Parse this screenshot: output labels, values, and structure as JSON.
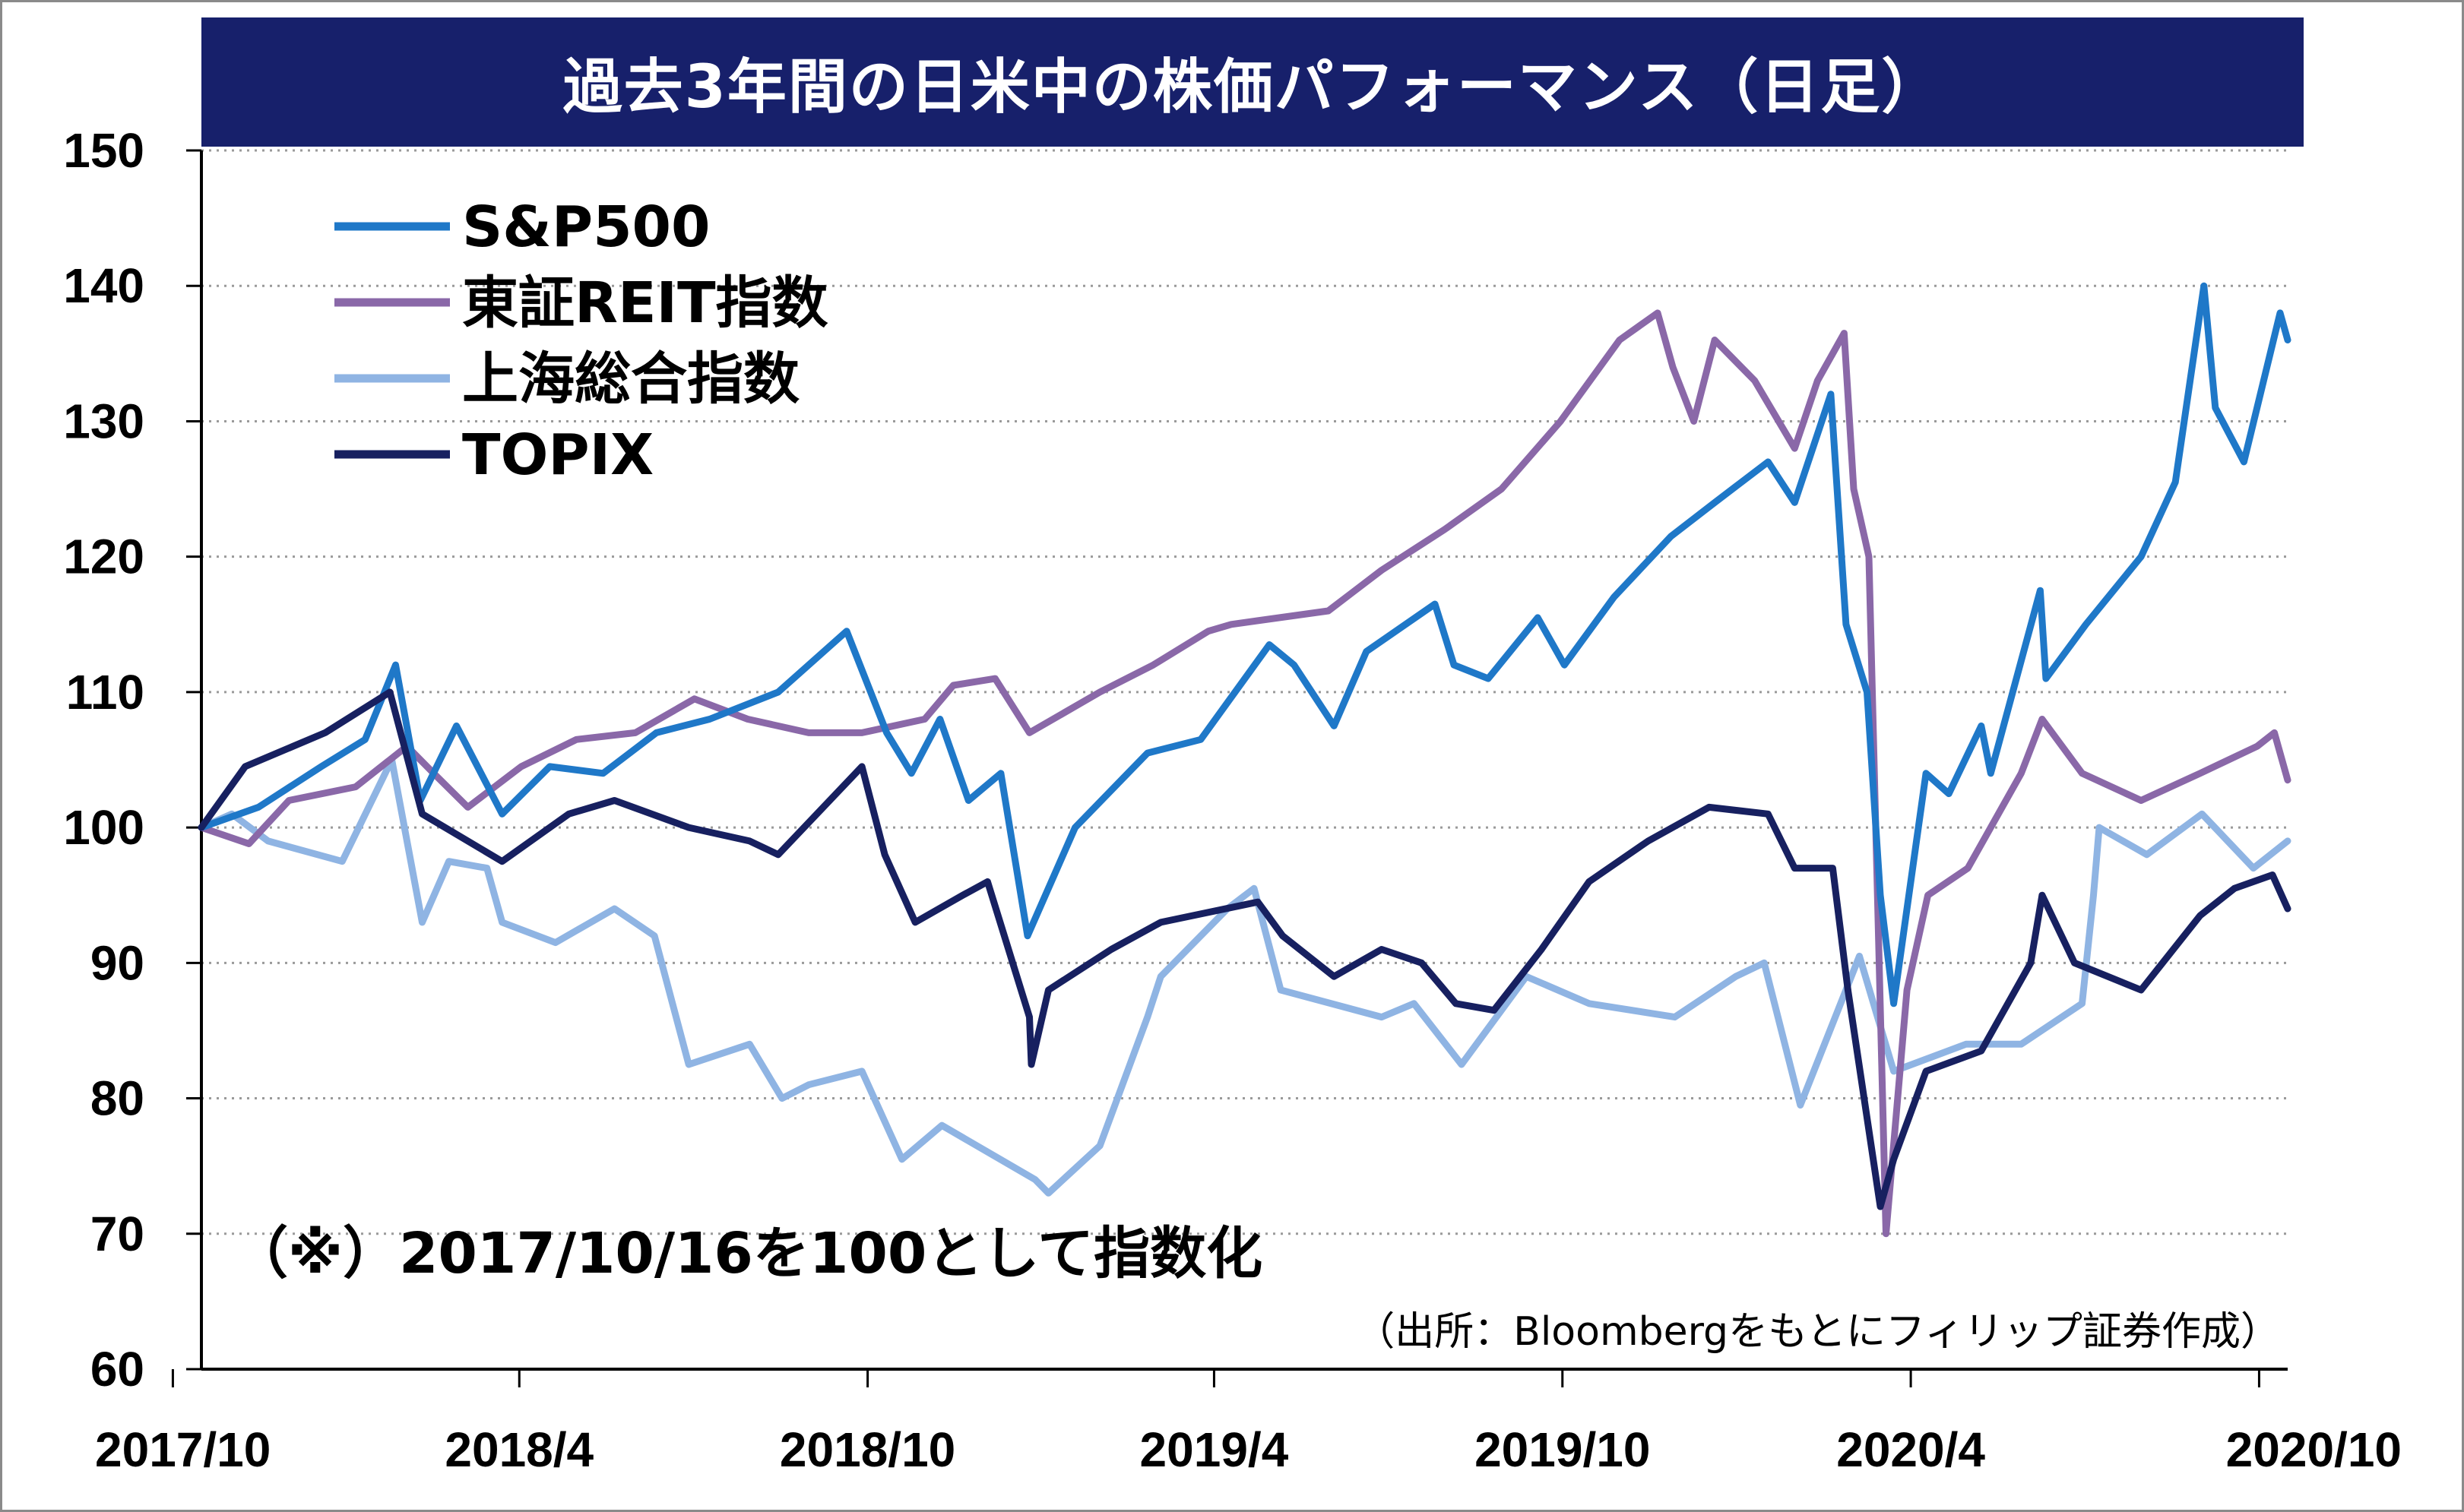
{
  "chart_data": {
    "type": "line",
    "title": "過去3年間の日米中の株価パフォーマンス（日足）",
    "note": "（※）2017/10/16を100として指数化",
    "source": "（出所：Bloombergをもとにフィリップ証券作成）",
    "xlabel": "",
    "ylabel": "",
    "ylim": [
      60,
      150
    ],
    "yticks": [
      "150",
      "140",
      "130",
      "120",
      "110",
      "100",
      "90",
      "80",
      "70",
      "60"
    ],
    "xticks": [
      "2017/10",
      "2018/4",
      "2018/10",
      "2019/4",
      "2019/10",
      "2020/4",
      "2020/10"
    ],
    "xrange": [
      "2017/10/16",
      "2020/10/16"
    ],
    "grid": "horizontal dotted",
    "legend_position": "top-left",
    "series": [
      {
        "name": "S&P500",
        "color": "#1f78c8",
        "points": [
          [
            "2017/10/16",
            100
          ],
          [
            "2017/11/15",
            101.5
          ],
          [
            "2017/12/18",
            104.5
          ],
          [
            "2018/1/10",
            106.5
          ],
          [
            "2018/1/26",
            112
          ],
          [
            "2018/2/8",
            102
          ],
          [
            "2018/2/27",
            107.5
          ],
          [
            "2018/3/23",
            101
          ],
          [
            "2018/4/17",
            104.5
          ],
          [
            "2018/5/15",
            104
          ],
          [
            "2018/6/12",
            107
          ],
          [
            "2018/7/10",
            108
          ],
          [
            "2018/8/15",
            110
          ],
          [
            "2018/9/20",
            114.5
          ],
          [
            "2018/10/11",
            107
          ],
          [
            "2018/10/24",
            104
          ],
          [
            "2018/11/8",
            108
          ],
          [
            "2018/11/23",
            102
          ],
          [
            "2018/12/10",
            104
          ],
          [
            "2018/12/24",
            92
          ],
          [
            "2019/1/18",
            100
          ],
          [
            "2019/2/25",
            105.5
          ],
          [
            "2019/3/25",
            106.5
          ],
          [
            "2019/4/30",
            113.5
          ],
          [
            "2019/5/13",
            112
          ],
          [
            "2019/6/3",
            107.5
          ],
          [
            "2019/6/20",
            113
          ],
          [
            "2019/7/26",
            116.5
          ],
          [
            "2019/8/5",
            112
          ],
          [
            "2019/8/23",
            111
          ],
          [
            "2019/9/18",
            115.5
          ],
          [
            "2019/10/2",
            112
          ],
          [
            "2019/10/28",
            117
          ],
          [
            "2019/11/27",
            121.5
          ],
          [
            "2019/12/20",
            124
          ],
          [
            "2020/1/17",
            127
          ],
          [
            "2020/1/31",
            124
          ],
          [
            "2020/2/19",
            132
          ],
          [
            "2020/2/27",
            115
          ],
          [
            "2020/3/9",
            110
          ],
          [
            "2020/3/16",
            95
          ],
          [
            "2020/3/23",
            87
          ],
          [
            "2020/4/9",
            104
          ],
          [
            "2020/4/21",
            102.5
          ],
          [
            "2020/5/8",
            107.5
          ],
          [
            "2020/5/13",
            104
          ],
          [
            "2020/6/8",
            117.5
          ],
          [
            "2020/6/11",
            111
          ],
          [
            "2020/7/2",
            115
          ],
          [
            "2020/7/31",
            120
          ],
          [
            "2020/8/18",
            125.5
          ],
          [
            "2020/9/2",
            140
          ],
          [
            "2020/9/8",
            131
          ],
          [
            "2020/9/23",
            127
          ],
          [
            "2020/10/12",
            138
          ],
          [
            "2020/10/16",
            136
          ]
        ]
      },
      {
        "name": "東証REIT指数",
        "color": "#8a68a8",
        "points": [
          [
            "2017/10/16",
            100
          ],
          [
            "2017/11/10",
            98.8
          ],
          [
            "2017/12/1",
            102
          ],
          [
            "2018/1/5",
            103
          ],
          [
            "2018/2/1",
            106
          ],
          [
            "2018/2/15",
            104
          ],
          [
            "2018/3/5",
            101.5
          ],
          [
            "2018/4/2",
            104.5
          ],
          [
            "2018/5/1",
            106.5
          ],
          [
            "2018/6/1",
            107
          ],
          [
            "2018/7/2",
            109.5
          ],
          [
            "2018/7/30",
            108
          ],
          [
            "2018/8/31",
            107
          ],
          [
            "2018/9/28",
            107
          ],
          [
            "2018/10/31",
            108
          ],
          [
            "2018/11/15",
            110.5
          ],
          [
            "2018/12/7",
            111
          ],
          [
            "2018/12/25",
            107
          ],
          [
            "2019/1/31",
            110
          ],
          [
            "2019/2/28",
            112
          ],
          [
            "2019/3/29",
            114.5
          ],
          [
            "2019/4/10",
            115
          ],
          [
            "2019/5/31",
            116
          ],
          [
            "2019/6/28",
            119
          ],
          [
            "2019/7/31",
            122
          ],
          [
            "2019/8/30",
            125
          ],
          [
            "2019/9/30",
            130
          ],
          [
            "2019/10/31",
            136
          ],
          [
            "2019/11/20",
            138
          ],
          [
            "2019/11/28",
            134
          ],
          [
            "2019/12/9",
            130
          ],
          [
            "2019/12/20",
            136
          ],
          [
            "2020/1/10",
            133
          ],
          [
            "2020/1/31",
            128
          ],
          [
            "2020/2/12",
            133
          ],
          [
            "2020/2/26",
            136.5
          ],
          [
            "2020/3/2",
            125
          ],
          [
            "2020/3/10",
            120
          ],
          [
            "2020/3/19",
            70
          ],
          [
            "2020/3/30",
            88
          ],
          [
            "2020/4/10",
            95
          ],
          [
            "2020/5/1",
            97
          ],
          [
            "2020/5/29",
            104
          ],
          [
            "2020/6/9",
            108
          ],
          [
            "2020/6/30",
            104
          ],
          [
            "2020/7/31",
            102
          ],
          [
            "2020/8/31",
            104
          ],
          [
            "2020/9/30",
            106
          ],
          [
            "2020/10/9",
            107
          ],
          [
            "2020/10/16",
            103.5
          ]
        ]
      },
      {
        "name": "上海総合指数",
        "color": "#8fb4e3",
        "points": [
          [
            "2017/10/16",
            100
          ],
          [
            "2017/11/1",
            101
          ],
          [
            "2017/11/20",
            99
          ],
          [
            "2017/12/29",
            97.5
          ],
          [
            "2018/1/24",
            105
          ],
          [
            "2018/2/9",
            93
          ],
          [
            "2018/2/23",
            97.5
          ],
          [
            "2018/3/15",
            97
          ],
          [
            "2018/3/23",
            93
          ],
          [
            "2018/4/20",
            91.5
          ],
          [
            "2018/5/21",
            94
          ],
          [
            "2018/6/11",
            92
          ],
          [
            "2018/6/29",
            82.5
          ],
          [
            "2018/7/31",
            84
          ],
          [
            "2018/8/17",
            80
          ],
          [
            "2018/8/31",
            81
          ],
          [
            "2018/9/28",
            82
          ],
          [
            "2018/10/19",
            75.5
          ],
          [
            "2018/11/9",
            78
          ],
          [
            "2018/12/28",
            74
          ],
          [
            "2019/1/4",
            73
          ],
          [
            "2019/1/31",
            76.5
          ],
          [
            "2019/2/25",
            86
          ],
          [
            "2019/3/4",
            89
          ],
          [
            "2019/4/8",
            94
          ],
          [
            "2019/4/22",
            95.5
          ],
          [
            "2019/5/6",
            88
          ],
          [
            "2019/6/28",
            86
          ],
          [
            "2019/7/15",
            87
          ],
          [
            "2019/8/9",
            82.5
          ],
          [
            "2019/9/12",
            89
          ],
          [
            "2019/10/15",
            87
          ],
          [
            "2019/11/29",
            86
          ],
          [
            "2019/12/31",
            89
          ],
          [
            "2020/1/15",
            90
          ],
          [
            "2020/2/3",
            79.5
          ],
          [
            "2020/3/5",
            90.5
          ],
          [
            "2020/3/23",
            82
          ],
          [
            "2020/4/30",
            84
          ],
          [
            "2020/5/29",
            84
          ],
          [
            "2020/6/30",
            87
          ],
          [
            "2020/7/6",
            95
          ],
          [
            "2020/7/9",
            100
          ],
          [
            "2020/8/3",
            98
          ],
          [
            "2020/9/1",
            101
          ],
          [
            "2020/9/28",
            97
          ],
          [
            "2020/10/16",
            99
          ]
        ]
      },
      {
        "name": "TOPIX",
        "color": "#172060",
        "points": [
          [
            "2017/10/16",
            100
          ],
          [
            "2017/11/8",
            104.5
          ],
          [
            "2017/12/20",
            107
          ],
          [
            "2018/1/23",
            110
          ],
          [
            "2018/2/9",
            101
          ],
          [
            "2018/3/23",
            97.5
          ],
          [
            "2018/4/27",
            101
          ],
          [
            "2018/5/21",
            102
          ],
          [
            "2018/6/29",
            100
          ],
          [
            "2018/7/31",
            99
          ],
          [
            "2018/8/15",
            98
          ],
          [
            "2018/9/28",
            104.5
          ],
          [
            "2018/10/10",
            98
          ],
          [
            "2018/10/26",
            93
          ],
          [
            "2018/11/20",
            95
          ],
          [
            "2018/12/3",
            96
          ],
          [
            "2018/12/25",
            86
          ],
          [
            "2018/12/26",
            82.5
          ],
          [
            "2019/1/4",
            88
          ],
          [
            "2019/2/6",
            91
          ],
          [
            "2019/3/4",
            93
          ],
          [
            "2019/4/24",
            94.5
          ],
          [
            "2019/5/7",
            92
          ],
          [
            "2019/6/3",
            89
          ],
          [
            "2019/6/28",
            91
          ],
          [
            "2019/7/19",
            90
          ],
          [
            "2019/8/6",
            87
          ],
          [
            "2019/8/26",
            86.5
          ],
          [
            "2019/9/20",
            91
          ],
          [
            "2019/10/15",
            96
          ],
          [
            "2019/11/15",
            99
          ],
          [
            "2019/12/17",
            101.5
          ],
          [
            "2020/1/17",
            101
          ],
          [
            "2020/1/31",
            97
          ],
          [
            "2020/2/20",
            97
          ],
          [
            "2020/2/28",
            88
          ],
          [
            "2020/3/16",
            72
          ],
          [
            "2020/3/23",
            75.5
          ],
          [
            "2020/4/9",
            82
          ],
          [
            "2020/5/8",
            83.5
          ],
          [
            "2020/6/3",
            90
          ],
          [
            "2020/6/9",
            95
          ],
          [
            "2020/6/26",
            90
          ],
          [
            "2020/7/31",
            88
          ],
          [
            "2020/8/31",
            93.5
          ],
          [
            "2020/9/18",
            95.5
          ],
          [
            "2020/10/8",
            96.5
          ],
          [
            "2020/10/16",
            94
          ]
        ]
      }
    ]
  }
}
